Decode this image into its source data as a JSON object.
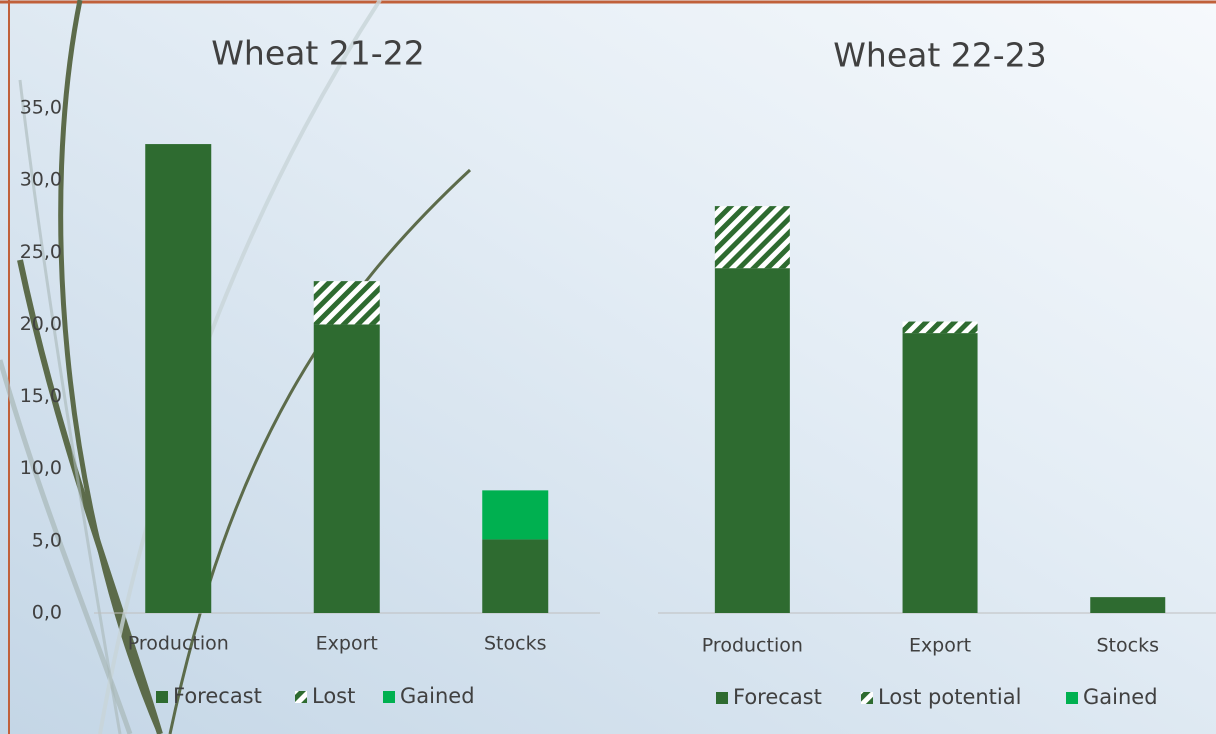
{
  "chart_data": [
    {
      "type": "bar",
      "stacked": true,
      "title": "Wheat 21-22",
      "categories": [
        "Production",
        "Export",
        "Stocks"
      ],
      "series": [
        {
          "name": "Forecast",
          "color": "#2e6b30",
          "values": [
            32.5,
            20.0,
            5.1
          ]
        },
        {
          "name": "Lost",
          "color": "#2e6b30",
          "hatch": true,
          "values": [
            null,
            3.0,
            null
          ]
        },
        {
          "name": "Gained",
          "color": "#00b050",
          "values": [
            null,
            null,
            3.4
          ]
        }
      ],
      "ylim": [
        0,
        35
      ],
      "yticks": [
        {
          "value": 0,
          "label": "0,0"
        },
        {
          "value": 5,
          "label": "5,0"
        },
        {
          "value": 10,
          "label": "10,0"
        },
        {
          "value": 15,
          "label": "15,0"
        },
        {
          "value": 20,
          "label": "20,0"
        },
        {
          "value": 25,
          "label": "25,0"
        },
        {
          "value": 30,
          "label": "30,0"
        },
        {
          "value": 35,
          "label": "35,0"
        }
      ],
      "legend": "bottom"
    },
    {
      "type": "bar",
      "stacked": true,
      "title": "Wheat 22-23",
      "categories": [
        "Production",
        "Export",
        "Stocks"
      ],
      "series": [
        {
          "name": "Forecast",
          "color": "#2e6b30",
          "values": [
            23.9,
            19.4,
            1.1
          ]
        },
        {
          "name": "Lost potential",
          "color": "#2e6b30",
          "hatch": true,
          "values": [
            4.3,
            0.8,
            null
          ]
        },
        {
          "name": "Gained",
          "color": "#00b050",
          "values": [
            null,
            null,
            null
          ]
        }
      ],
      "ylim": [
        0,
        35
      ],
      "legend": "bottom"
    }
  ]
}
